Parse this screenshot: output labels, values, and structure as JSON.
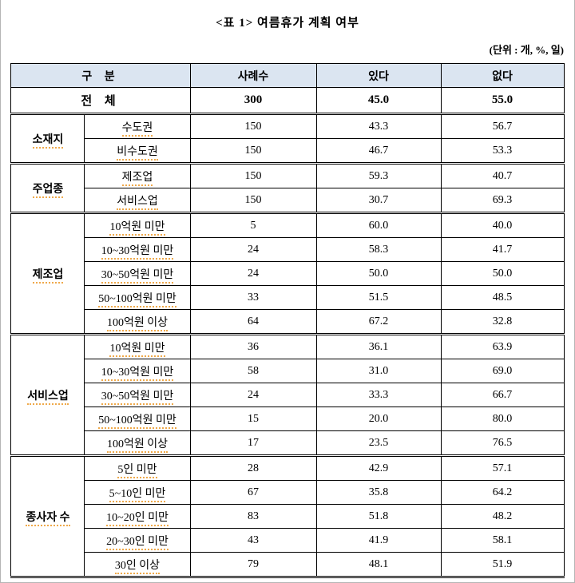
{
  "title": "<표 1> 여름휴가 계획 여부",
  "unit_note": "(단위 : 개, %, 일)",
  "table": {
    "headers": {
      "category": "구 분",
      "cases": "사례수",
      "yes": "있다",
      "no": "없다"
    },
    "total_row": {
      "label": "전 체",
      "cases": "300",
      "yes": "45.0",
      "no": "55.0"
    },
    "groups": [
      {
        "label": "소재지",
        "rows": [
          {
            "name": "수도권",
            "cases": "150",
            "yes": "43.3",
            "no": "56.7"
          },
          {
            "name": "비수도권",
            "cases": "150",
            "yes": "46.7",
            "no": "53.3"
          }
        ]
      },
      {
        "label": "주업종",
        "rows": [
          {
            "name": "제조업",
            "cases": "150",
            "yes": "59.3",
            "no": "40.7"
          },
          {
            "name": "서비스업",
            "cases": "150",
            "yes": "30.7",
            "no": "69.3"
          }
        ]
      },
      {
        "label": "제조업",
        "rows": [
          {
            "name": "10억원 미만",
            "cases": "5",
            "yes": "60.0",
            "no": "40.0"
          },
          {
            "name": "10~30억원 미만",
            "cases": "24",
            "yes": "58.3",
            "no": "41.7"
          },
          {
            "name": "30~50억원 미만",
            "cases": "24",
            "yes": "50.0",
            "no": "50.0"
          },
          {
            "name": "50~100억원 미만",
            "cases": "33",
            "yes": "51.5",
            "no": "48.5"
          },
          {
            "name": "100억원 이상",
            "cases": "64",
            "yes": "67.2",
            "no": "32.8"
          }
        ]
      },
      {
        "label": "서비스업",
        "rows": [
          {
            "name": "10억원 미만",
            "cases": "36",
            "yes": "36.1",
            "no": "63.9"
          },
          {
            "name": "10~30억원 미만",
            "cases": "58",
            "yes": "31.0",
            "no": "69.0"
          },
          {
            "name": "30~50억원 미만",
            "cases": "24",
            "yes": "33.3",
            "no": "66.7"
          },
          {
            "name": "50~100억원 미만",
            "cases": "15",
            "yes": "20.0",
            "no": "80.0"
          },
          {
            "name": "100억원 이상",
            "cases": "17",
            "yes": "23.5",
            "no": "76.5"
          }
        ]
      },
      {
        "label": "종사자 수",
        "rows": [
          {
            "name": "5인 미만",
            "cases": "28",
            "yes": "42.9",
            "no": "57.1"
          },
          {
            "name": "5~10인 미만",
            "cases": "67",
            "yes": "35.8",
            "no": "64.2"
          },
          {
            "name": "10~20인 미만",
            "cases": "83",
            "yes": "51.8",
            "no": "48.2"
          },
          {
            "name": "20~30인 미만",
            "cases": "43",
            "yes": "41.9",
            "no": "58.1"
          },
          {
            "name": "30인 이상",
            "cases": "79",
            "yes": "48.1",
            "no": "51.9"
          }
        ]
      }
    ]
  },
  "colors": {
    "header_bg": "#dbe5f1",
    "border": "#000000",
    "spellcheck_underline": "#efa94a"
  }
}
